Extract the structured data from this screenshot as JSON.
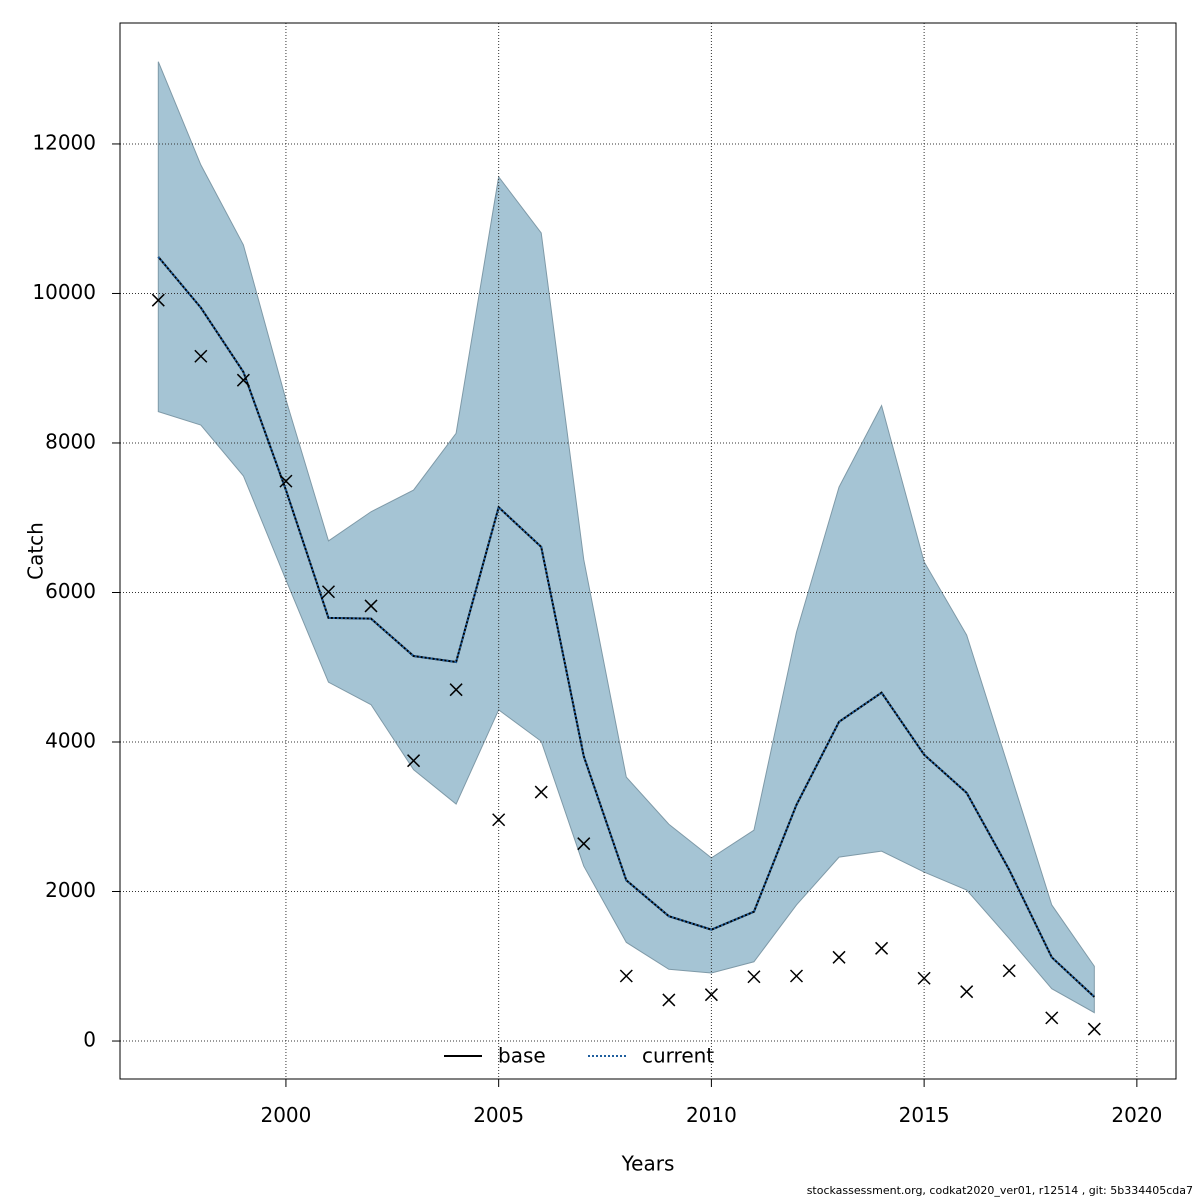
{
  "chart_data": {
    "type": "line",
    "xlabel": "Years",
    "ylabel": "Catch",
    "footer": "stockassessment.org, codkat2020_ver01, r12514 , git: 5b334405cda7",
    "x": [
      1997,
      1998,
      1999,
      2000,
      2001,
      2002,
      2003,
      2004,
      2005,
      2006,
      2007,
      2008,
      2009,
      2010,
      2011,
      2012,
      2013,
      2014,
      2015,
      2016,
      2017,
      2018,
      2019
    ],
    "xlim": [
      1996.1,
      2020.92
    ],
    "xticks": [
      2000,
      2005,
      2010,
      2015,
      2020
    ],
    "ylim": [
      -508,
      13618
    ],
    "yticks": [
      0,
      2000,
      4000,
      6000,
      8000,
      10000,
      12000
    ],
    "grid": true,
    "legend": "bottom",
    "band": {
      "color": "#a5c4d4",
      "upper": [
        13100,
        11720,
        10650,
        8580,
        6690,
        7080,
        7370,
        8130,
        11560,
        10810,
        6440,
        3530,
        2900,
        2450,
        2820,
        5470,
        7410,
        8500,
        6410,
        5430,
        3630,
        1820,
        1000
      ],
      "lower": [
        8420,
        8240,
        7560,
        6170,
        4800,
        4500,
        3630,
        3170,
        4430,
        4010,
        2340,
        1320,
        960,
        910,
        1060,
        1820,
        2460,
        2540,
        2260,
        2020,
        1370,
        700,
        380
      ]
    },
    "series": [
      {
        "name": "base",
        "color": "#000000",
        "style": "solid",
        "values": [
          10490,
          9810,
          8950,
          7370,
          5660,
          5650,
          5150,
          5070,
          7140,
          6610,
          3810,
          2150,
          1670,
          1490,
          1730,
          3160,
          4270,
          4660,
          3830,
          3320,
          2290,
          1120,
          590
        ]
      },
      {
        "name": "current",
        "color": "#1f5f9e",
        "style": "dotted",
        "values": [
          10490,
          9810,
          8950,
          7370,
          5660,
          5650,
          5150,
          5070,
          7140,
          6610,
          3810,
          2150,
          1670,
          1490,
          1730,
          3160,
          4270,
          4660,
          3830,
          3320,
          2290,
          1120,
          590
        ]
      }
    ],
    "observed": {
      "color": "#000000",
      "values": [
        9910,
        9160,
        8840,
        7490,
        6010,
        5820,
        3750,
        4700,
        2960,
        3330,
        2640,
        870,
        550,
        620,
        860,
        870,
        1120,
        1240,
        840,
        660,
        940,
        310,
        160
      ]
    }
  }
}
